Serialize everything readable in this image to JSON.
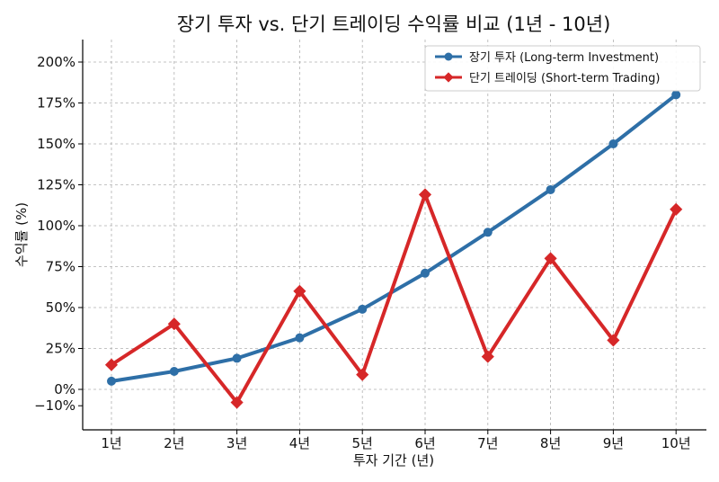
{
  "chart_data": {
    "type": "line",
    "title": "장기 투자 vs. 단기 트레이딩 수익률 비교 (1년 - 10년)",
    "xlabel": "투자 기간 (년)",
    "ylabel": "수익률 (%)",
    "categories": [
      "1년",
      "2년",
      "3년",
      "4년",
      "5년",
      "6년",
      "7년",
      "8년",
      "9년",
      "10년"
    ],
    "ylim": [
      -10,
      210
    ],
    "yticks": [
      -10,
      0,
      25,
      50,
      75,
      100,
      125,
      150,
      175,
      200
    ],
    "ytick_labels": [
      "−10%",
      "0%",
      "25%",
      "50%",
      "75%",
      "100%",
      "125%",
      "150%",
      "175%",
      "200%"
    ],
    "grid": true,
    "legend_position": "top-right",
    "series": [
      {
        "name": "장기 투자 (Long-term Investment)",
        "color": "#2E6FA7",
        "marker": "circle",
        "values": [
          5,
          11,
          19,
          31.5,
          49,
          71,
          96,
          122,
          150,
          180
        ]
      },
      {
        "name": "단기 트레이딩 (Short-term Trading)",
        "color": "#D62728",
        "marker": "diamond",
        "values": [
          15,
          40,
          -8,
          60,
          9,
          119,
          20,
          80,
          30,
          110
        ]
      }
    ]
  }
}
